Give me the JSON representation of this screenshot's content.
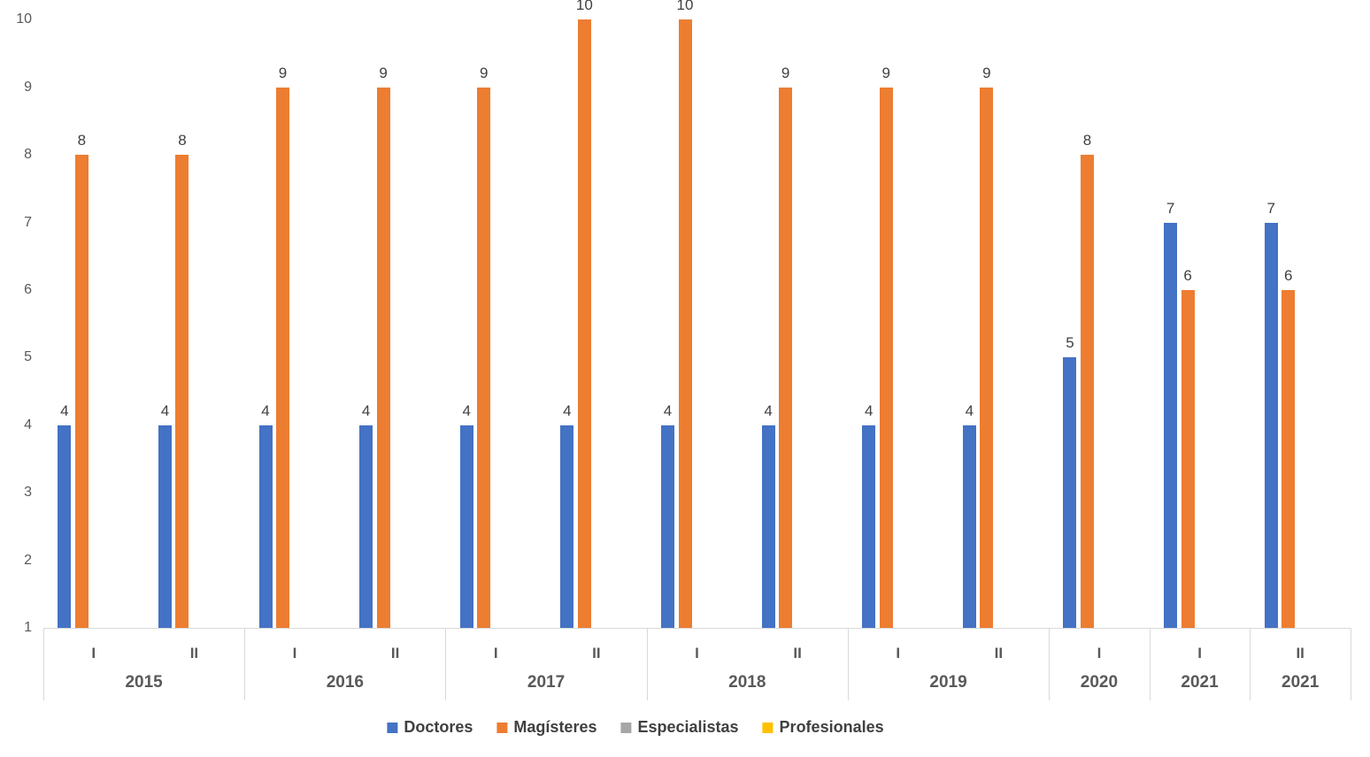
{
  "chart_data": {
    "type": "bar",
    "title": "",
    "xlabel": "",
    "ylabel": "",
    "gridlines": false,
    "data_labels": true,
    "legend_position": "bottom",
    "y_axis": {
      "min": 1,
      "max": 10,
      "tick_step": 1,
      "ticks": [
        "1",
        "2",
        "3",
        "4",
        "5",
        "6",
        "7",
        "8",
        "9",
        "10"
      ]
    },
    "x_groups": [
      {
        "year": "2015",
        "semesters": [
          "I",
          "II"
        ]
      },
      {
        "year": "2016",
        "semesters": [
          "I",
          "II"
        ]
      },
      {
        "year": "2017",
        "semesters": [
          "I",
          "II"
        ]
      },
      {
        "year": "2018",
        "semesters": [
          "I",
          "II"
        ]
      },
      {
        "year": "2019",
        "semesters": [
          "I",
          "II"
        ]
      },
      {
        "year": "2020",
        "semesters": [
          "I"
        ]
      },
      {
        "year": "2021",
        "semesters": [
          "I"
        ]
      },
      {
        "year": "2021",
        "semesters": [
          "II"
        ]
      }
    ],
    "series": [
      {
        "name": "Doctores",
        "color": "#4472C4",
        "values": [
          4,
          4,
          4,
          4,
          4,
          4,
          4,
          4,
          4,
          4,
          5,
          7,
          7
        ]
      },
      {
        "name": "Magísteres",
        "color": "#ED7D31",
        "values": [
          8,
          8,
          9,
          9,
          9,
          10,
          10,
          9,
          9,
          9,
          8,
          6,
          6
        ]
      },
      {
        "name": "Especialistas",
        "color": "#A6A6A6",
        "values": [
          0,
          0,
          0,
          0,
          0,
          0,
          0,
          0,
          0,
          0,
          0,
          0,
          0
        ]
      },
      {
        "name": "Profesionales",
        "color": "#FFC000",
        "values": [
          0,
          0,
          0,
          0,
          0,
          0,
          0,
          0,
          0,
          0,
          0,
          0,
          0
        ]
      }
    ]
  },
  "legend": {
    "items": [
      {
        "label": "Doctores",
        "color": "#4472C4"
      },
      {
        "label": "Magísteres",
        "color": "#ED7D31"
      },
      {
        "label": "Especialistas",
        "color": "#A6A6A6"
      },
      {
        "label": "Profesionales",
        "color": "#FFC000"
      }
    ]
  },
  "colors": {
    "axis_line": "#d9d9d9",
    "tick_text": "#595959",
    "data_label_text": "#404040"
  }
}
